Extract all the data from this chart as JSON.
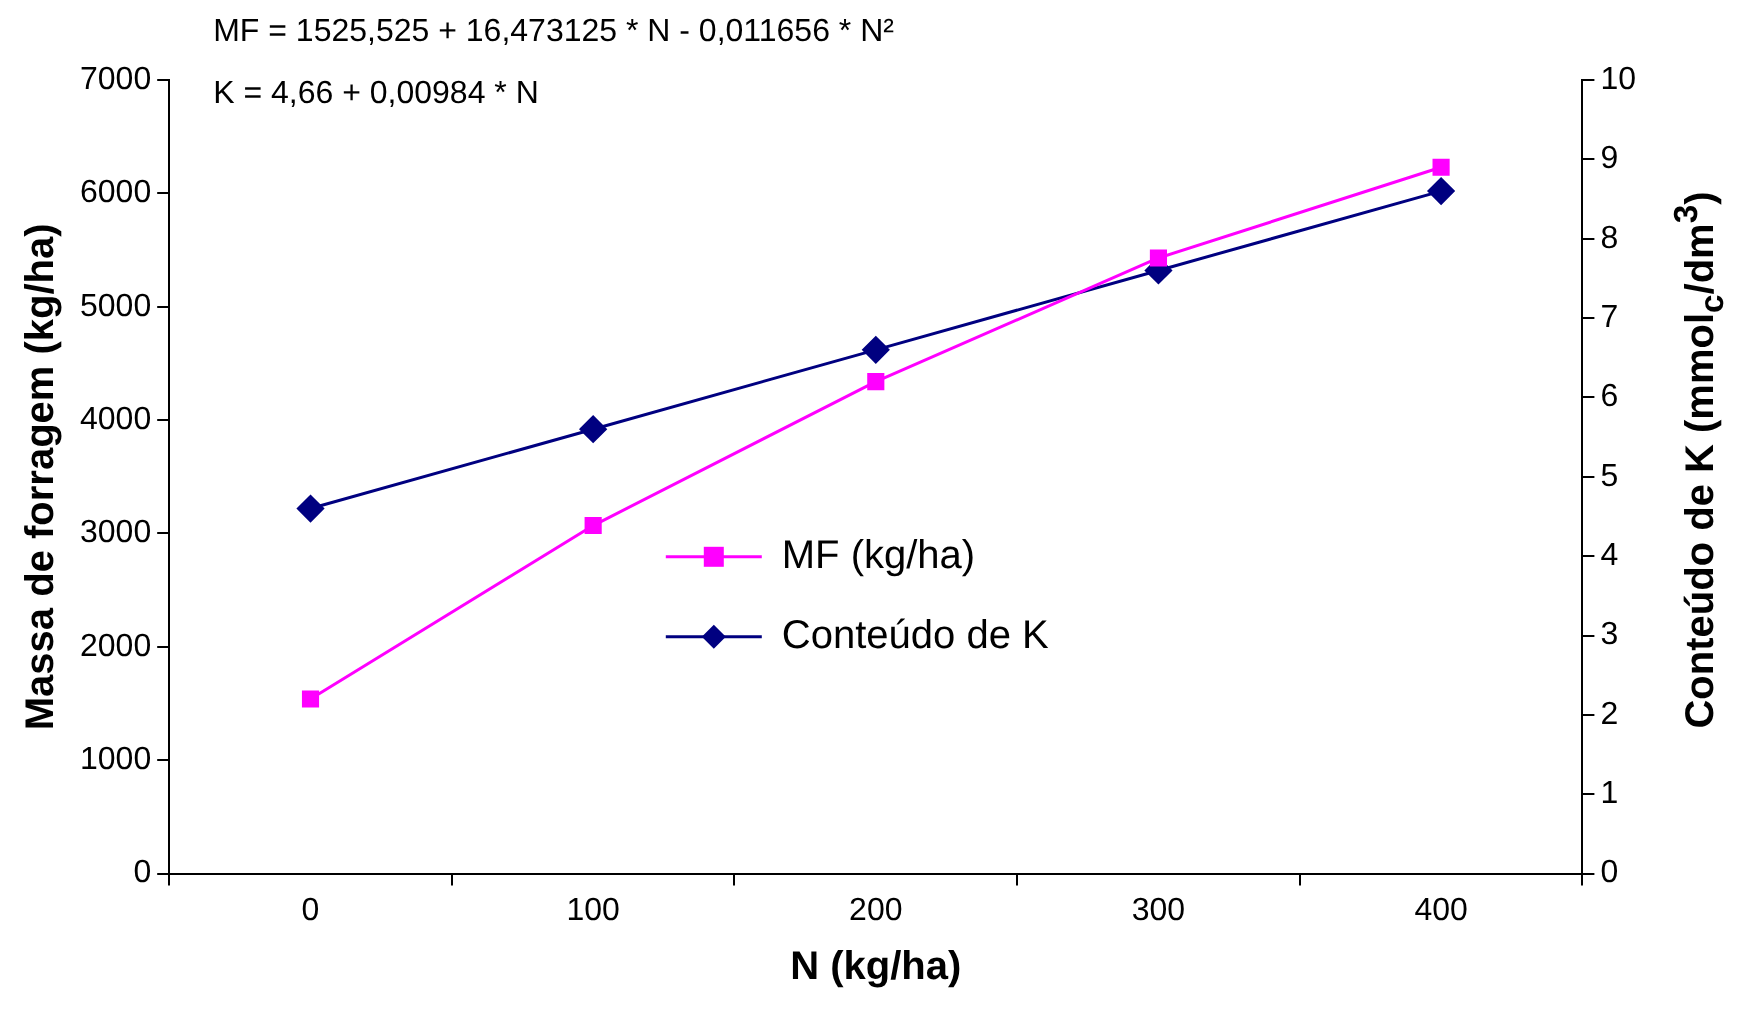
{
  "chart_data": {
    "type": "line",
    "xlabel": "N (kg/ha)",
    "ylabel": "Massa de forragem (kg/ha)",
    "y2label": "Conteúdo de K (mmol$_{c}$/dm$^{3}$)",
    "annotations": [
      "MF = 1525,525 + 16,473125 * N - 0,011656 * N²",
      "K = 4,66 + 0,00984 * N"
    ],
    "categories": [
      "0",
      "100",
      "200",
      "300",
      "400"
    ],
    "series": [
      {
        "name": "MF (kg/ha)",
        "color": "#ff00ff",
        "marker": "square",
        "values": [
          1540,
          3070,
          4340,
          5430,
          6230
        ]
      },
      {
        "name": "Conteúdo de K",
        "color": "#000080",
        "marker": "diamond",
        "axis": "y2",
        "values": [
          4.6,
          5.6,
          6.6,
          7.6,
          8.6
        ]
      }
    ],
    "ylim": [
      0,
      7000
    ],
    "yticks": [
      0,
      1000,
      2000,
      3000,
      4000,
      5000,
      6000,
      7000
    ],
    "y2lim": [
      0,
      10
    ],
    "y2ticks": [
      0,
      1,
      2,
      3,
      4,
      5,
      6,
      7,
      8,
      9,
      10
    ],
    "grid": false,
    "legend": "center",
    "line_style": "solid"
  }
}
